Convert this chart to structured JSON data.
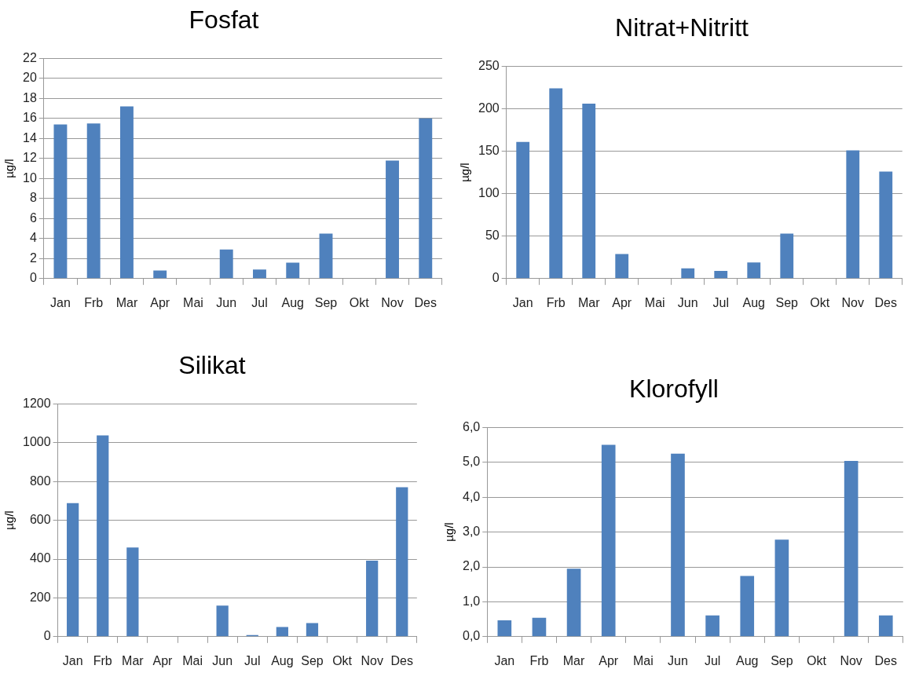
{
  "chart_data": [
    {
      "type": "bar",
      "title": "Fosfat",
      "ylabel": "µg/l",
      "categories": [
        "Jan",
        "Frb",
        "Mar",
        "Apr",
        "Mai",
        "Jun",
        "Jul",
        "Aug",
        "Sep",
        "Okt",
        "Nov",
        "Des"
      ],
      "values": [
        15.4,
        15.5,
        17.2,
        0.8,
        null,
        2.9,
        0.9,
        1.6,
        4.5,
        null,
        11.8,
        16.0
      ],
      "color": "#4f81bd",
      "ylim": [
        0,
        22
      ],
      "yticks": [
        0,
        2,
        4,
        6,
        8,
        10,
        12,
        14,
        16,
        18,
        20,
        22
      ],
      "grid": "y",
      "legend": false
    },
    {
      "type": "bar",
      "title": "Nitrat+Nitritt",
      "ylabel": "µg/l",
      "categories": [
        "Jan",
        "Frb",
        "Mar",
        "Apr",
        "Mai",
        "Jun",
        "Jul",
        "Aug",
        "Sep",
        "Okt",
        "Nov",
        "Des"
      ],
      "values": [
        161,
        224,
        206,
        29,
        null,
        12,
        9,
        19,
        53,
        null,
        151,
        126
      ],
      "color": "#4f81bd",
      "ylim": [
        0,
        250
      ],
      "yticks": [
        0,
        50,
        100,
        150,
        200,
        250
      ],
      "grid": "y",
      "legend": false
    },
    {
      "type": "bar",
      "title": "Silikat",
      "ylabel": "µg/l",
      "categories": [
        "Jan",
        "Frb",
        "Mar",
        "Apr",
        "Mai",
        "Jun",
        "Jul",
        "Aug",
        "Sep",
        "Okt",
        "Nov",
        "Des"
      ],
      "values": [
        688,
        1038,
        460,
        null,
        null,
        160,
        8,
        50,
        70,
        null,
        392,
        770
      ],
      "color": "#4f81bd",
      "ylim": [
        0,
        1200
      ],
      "yticks": [
        0,
        200,
        400,
        600,
        800,
        1000,
        1200
      ],
      "grid": "y",
      "legend": false
    },
    {
      "type": "bar",
      "title": "Klorofyll",
      "ylabel": "µg/l",
      "categories": [
        "Jan",
        "Frb",
        "Mar",
        "Apr",
        "Mai",
        "Jun",
        "Jul",
        "Aug",
        "Sep",
        "Okt",
        "Nov",
        "Des"
      ],
      "values": [
        0.47,
        0.54,
        1.95,
        5.5,
        null,
        5.25,
        0.61,
        1.74,
        2.78,
        null,
        5.04,
        0.61
      ],
      "color": "#4f81bd",
      "ylim": [
        0,
        6
      ],
      "yticks": [
        {
          "value": 0,
          "label": "0,0"
        },
        {
          "value": 1,
          "label": "1,0"
        },
        {
          "value": 2,
          "label": "2,0"
        },
        {
          "value": 3,
          "label": "3,0"
        },
        {
          "value": 4,
          "label": "4,0"
        },
        {
          "value": 5,
          "label": "5,0"
        },
        {
          "value": 6,
          "label": "6,0"
        }
      ],
      "grid": "y",
      "legend": false
    }
  ]
}
